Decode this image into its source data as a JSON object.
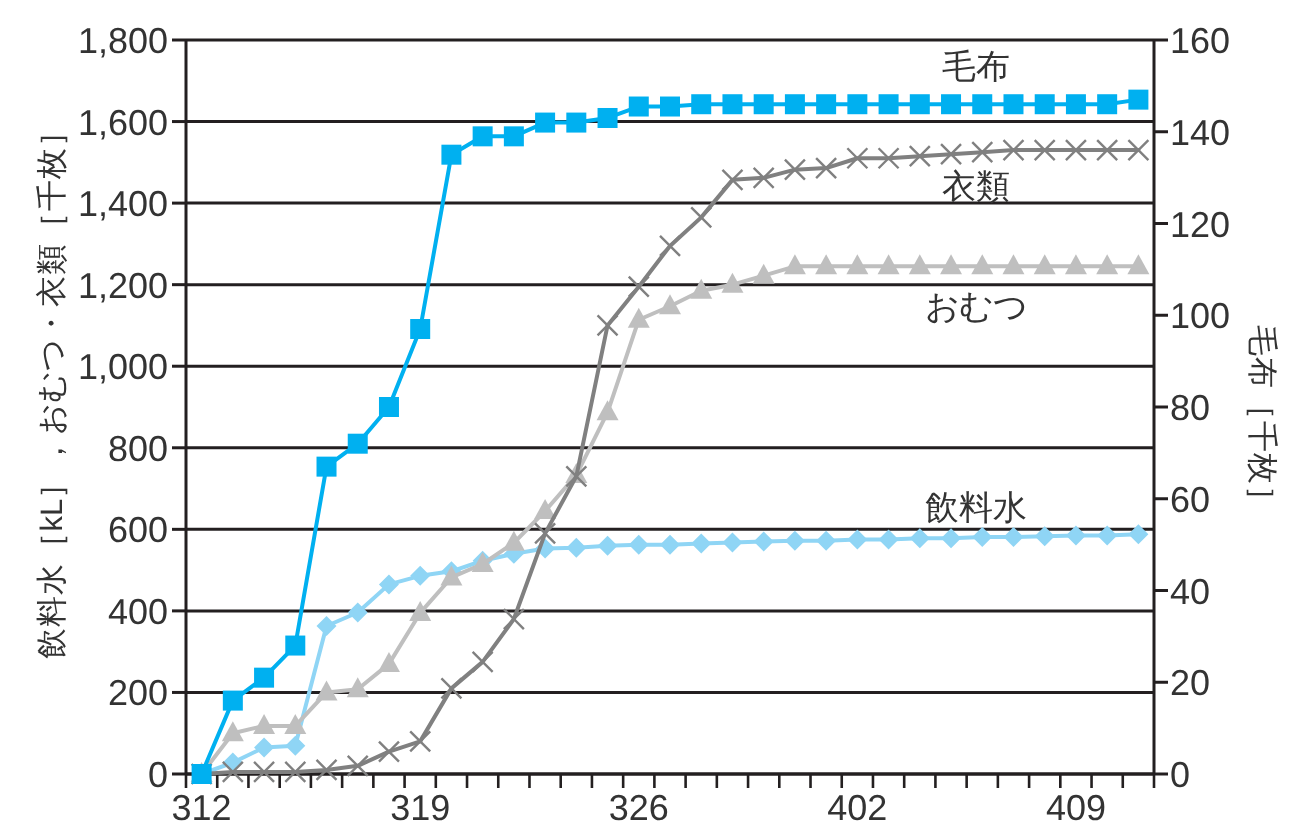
{
  "chart_data": {
    "type": "line",
    "ylabel": "飲料水［kL］，おむつ・衣類［千枚］",
    "y2label": "毛布［千枚］",
    "categories": [
      "312",
      null,
      null,
      null,
      null,
      null,
      null,
      "319",
      null,
      null,
      null,
      null,
      null,
      null,
      "326",
      null,
      null,
      null,
      null,
      null,
      null,
      "402",
      null,
      null,
      null,
      null,
      null,
      null,
      "409",
      null,
      null
    ],
    "ylim": [
      0,
      1800
    ],
    "yticks": [
      0,
      200,
      400,
      600,
      800,
      {
        "value": 1000,
        "label": "1,000"
      },
      {
        "value": 1200,
        "label": "1,200"
      },
      {
        "value": 1400,
        "label": "1,400"
      },
      {
        "value": 1600,
        "label": "1,600"
      },
      {
        "value": 1800,
        "label": "1,800"
      }
    ],
    "y2lim": [
      0,
      160
    ],
    "y2ticks": [
      0,
      20,
      40,
      60,
      80,
      100,
      120,
      140,
      160
    ],
    "grid": "y",
    "series": [
      {
        "name": "毛布",
        "color": "#00b0f0",
        "marker": "square",
        "axis": "y2",
        "values": [
          0,
          16,
          21,
          28,
          67,
          72,
          80,
          97,
          135,
          139,
          139,
          142,
          142,
          143,
          145.5,
          145.5,
          146,
          146,
          146,
          146,
          146,
          146,
          146,
          146,
          146,
          146,
          146,
          146,
          146,
          146,
          147
        ]
      },
      {
        "name": "衣類",
        "color": "#808080",
        "marker": "cross",
        "values": [
          0,
          5,
          5,
          5,
          10,
          20,
          55,
          80,
          210,
          275,
          380,
          590,
          730,
          1100,
          1195,
          1295,
          1365,
          1457,
          1462,
          1482,
          1486,
          1510,
          1510,
          1515,
          1520,
          1525,
          1530,
          1530,
          1530,
          1530,
          1530
        ]
      },
      {
        "name": "おむつ",
        "color": "#bfbfbf",
        "marker": "triangle",
        "values": [
          0,
          100,
          118,
          118,
          200,
          208,
          270,
          395,
          482,
          515,
          567,
          645,
          733,
          887,
          1114,
          1147,
          1185,
          1200,
          1222,
          1245,
          1245,
          1245,
          1245,
          1245,
          1245,
          1245,
          1245,
          1245,
          1245,
          1245,
          1245
        ]
      },
      {
        "name": "飲料水",
        "color": "#8fd5f5",
        "marker": "diamond",
        "values": [
          0,
          28,
          65,
          69,
          363,
          396,
          465,
          486,
          497,
          523,
          540,
          553,
          555,
          560,
          562,
          562,
          565,
          568,
          570,
          572,
          572,
          575,
          575,
          578,
          578,
          581,
          581,
          583,
          585,
          585,
          588
        ]
      }
    ]
  }
}
